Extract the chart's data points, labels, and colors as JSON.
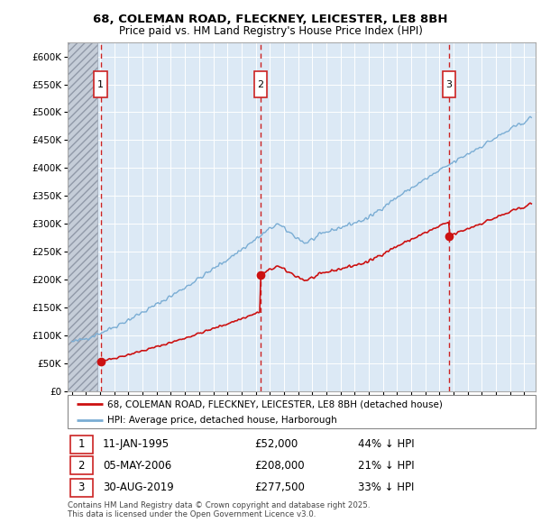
{
  "title_line1": "68, COLEMAN ROAD, FLECKNEY, LEICESTER, LE8 8BH",
  "title_line2": "Price paid vs. HM Land Registry's House Price Index (HPI)",
  "plot_bg_color": "#dce9f5",
  "hatch_color": "#c8d0dc",
  "ylim": [
    0,
    625000
  ],
  "yticks": [
    0,
    50000,
    100000,
    150000,
    200000,
    250000,
    300000,
    350000,
    400000,
    450000,
    500000,
    550000,
    600000
  ],
  "ytick_labels": [
    "£0",
    "£50K",
    "£100K",
    "£150K",
    "£200K",
    "£250K",
    "£300K",
    "£350K",
    "£400K",
    "£450K",
    "£500K",
    "£550K",
    "£600K"
  ],
  "xlim_start": 1992.7,
  "xlim_end": 2025.8,
  "xticks": [
    1993,
    1994,
    1995,
    1996,
    1997,
    1998,
    1999,
    2000,
    2001,
    2002,
    2003,
    2004,
    2005,
    2006,
    2007,
    2008,
    2009,
    2010,
    2011,
    2012,
    2013,
    2014,
    2015,
    2016,
    2017,
    2018,
    2019,
    2020,
    2021,
    2022,
    2023,
    2024,
    2025
  ],
  "hpi_line_color": "#7aadd4",
  "price_line_color": "#cc1111",
  "dashed_line_color": "#cc2222",
  "grid_color": "#ffffff",
  "sale1_x": 1995.03,
  "sale1_y": 52000,
  "sale2_x": 2006.34,
  "sale2_y": 208000,
  "sale3_x": 2019.66,
  "sale3_y": 277500,
  "hatch_end": 1994.8,
  "legend_line1": "68, COLEMAN ROAD, FLECKNEY, LEICESTER, LE8 8BH (detached house)",
  "legend_line2": "HPI: Average price, detached house, Harborough",
  "table_rows": [
    {
      "num": "1",
      "date": "11-JAN-1995",
      "price": "£52,000",
      "note": "44% ↓ HPI"
    },
    {
      "num": "2",
      "date": "05-MAY-2006",
      "price": "£208,000",
      "note": "21% ↓ HPI"
    },
    {
      "num": "3",
      "date": "30-AUG-2019",
      "price": "£277,500",
      "note": "33% ↓ HPI"
    }
  ],
  "footer_text": "Contains HM Land Registry data © Crown copyright and database right 2025.\nThis data is licensed under the Open Government Licence v3.0."
}
